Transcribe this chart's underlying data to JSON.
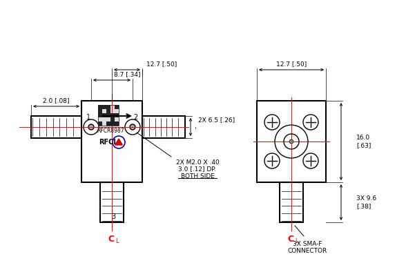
{
  "bg_color": "#ffffff",
  "line_color": "#000000",
  "red_color": "#ff0000",
  "figsize": [
    5.88,
    3.94
  ],
  "dpi": 100,
  "texts": {
    "dim_12_7_left": "12.7 [.50]",
    "dim_8_7": "8.7 [.34]",
    "dim_2_0": "2.0 [.08]",
    "dim_6_5": "2X 6.5 [.26]",
    "dim_m2_line1": "2X M2.0 X .40",
    "dim_m2_line2": "3.0 [.12] DP.",
    "dim_m2_line3": "BOTH SIDE",
    "label_1": "1",
    "label_2": "2",
    "label_3": "3",
    "rfcr_model": "RFCR8987",
    "rfci_text": "RFCI",
    "dim_12_7_right": "12.7 [.50]",
    "dim_16_0": "16.0\n[.63]",
    "dim_9_6": "3X 9.6\n[.38]",
    "sma_line1": "3X SMA-F",
    "sma_line2": "CONNECTOR"
  }
}
